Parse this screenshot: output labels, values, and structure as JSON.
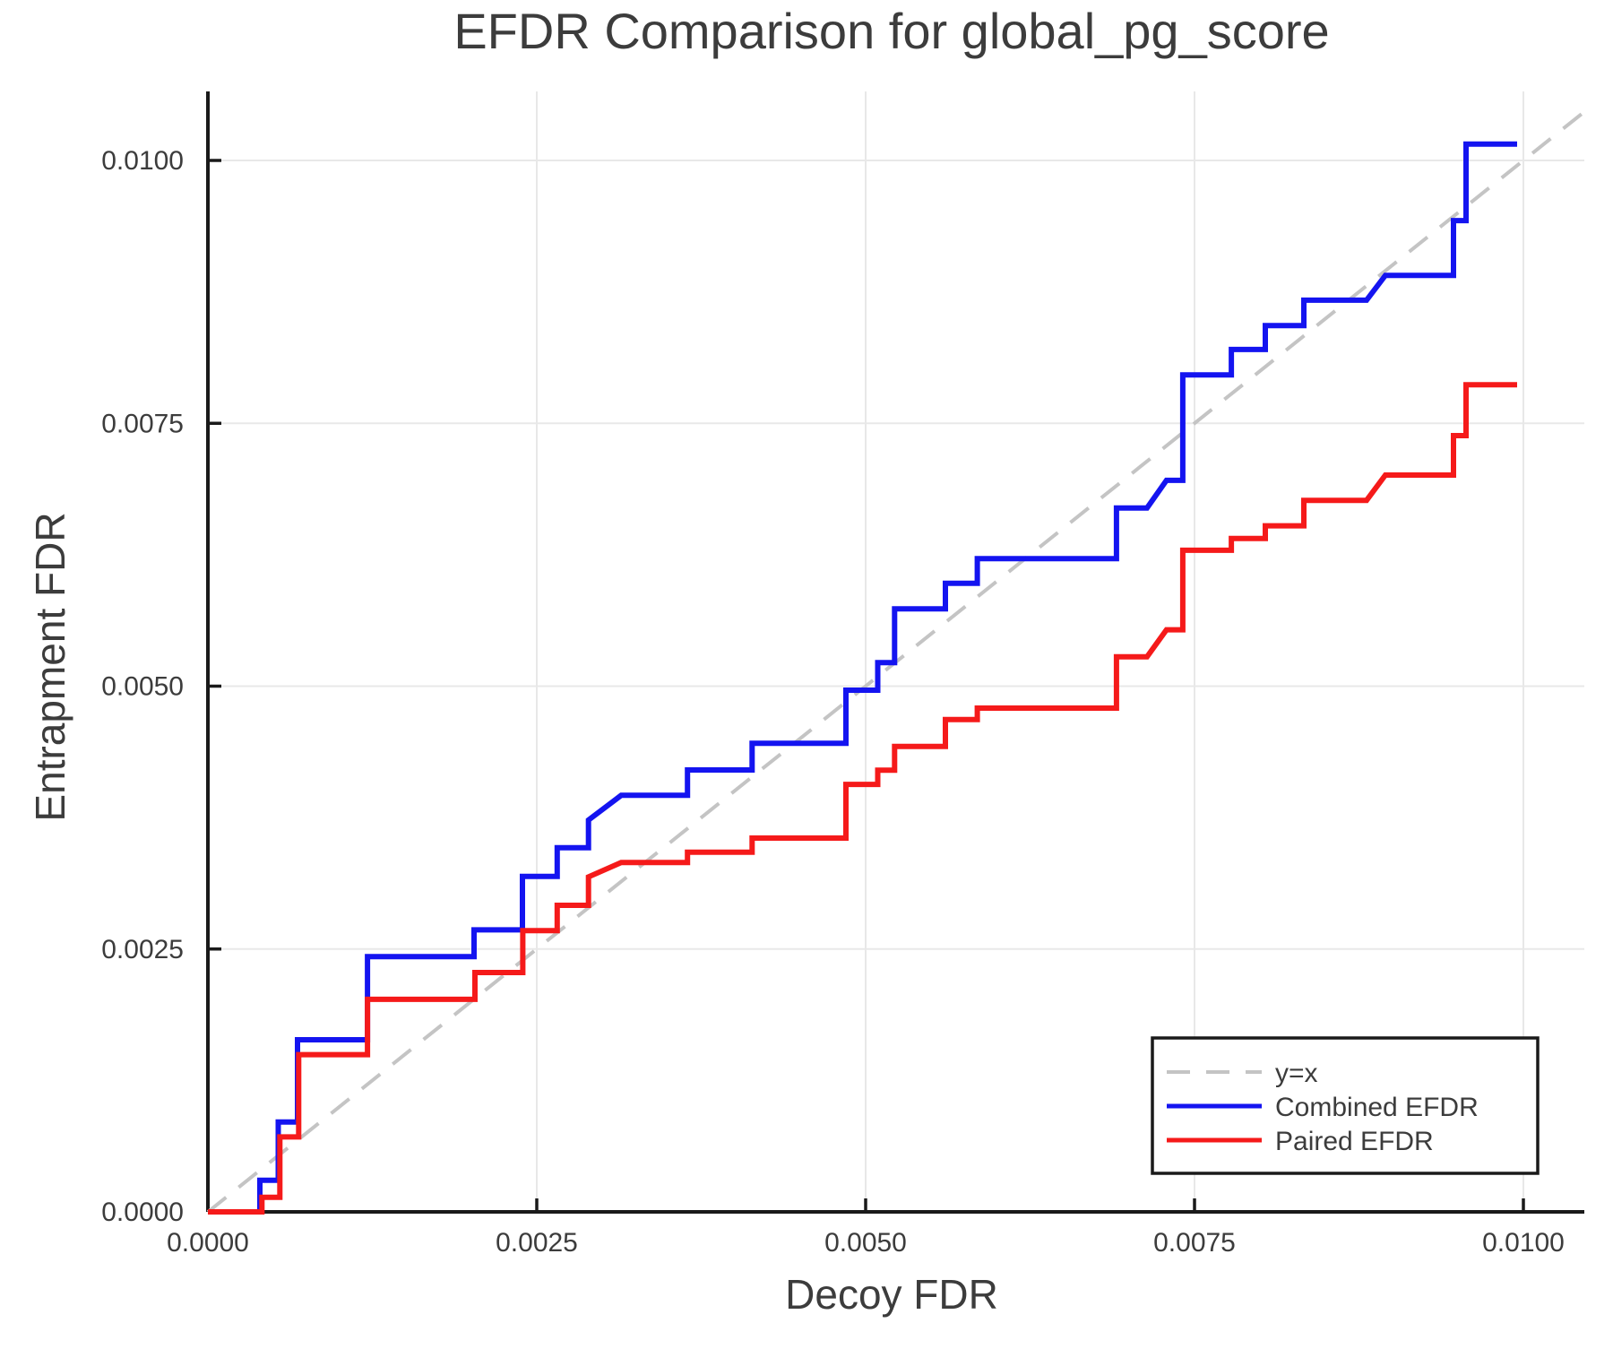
{
  "title": "EFDR Comparison for global_pg_score",
  "chart_data": {
    "type": "line",
    "title": "EFDR Comparison for global_pg_score",
    "xlabel": "Decoy FDR",
    "ylabel": "Entrapment FDR",
    "xlim": [
      0,
      0.010463
    ],
    "ylim": [
      0,
      0.010656
    ],
    "x_ticks": [
      0,
      0.0025,
      0.005,
      0.0075,
      0.01
    ],
    "x_tick_labels": [
      "0.0000",
      "0.0025",
      "0.0050",
      "0.0075",
      "0.0100"
    ],
    "y_ticks": [
      0,
      0.0025,
      0.005,
      0.0075,
      0.01
    ],
    "y_tick_labels": [
      "0.0000",
      "0.0025",
      "0.0050",
      "0.0075",
      "0.0100"
    ],
    "grid": true,
    "grid_color": "#E8E8E8",
    "spine_color": "#1a1a1a",
    "text_color": "#3C3C3C",
    "legend_position": "lower right",
    "series": [
      {
        "name": "y=x",
        "style": "dashed",
        "color": "#C4C4C4",
        "width": 4,
        "points": [
          [
            0,
            0
          ],
          [
            0.010463,
            0.010463
          ]
        ]
      },
      {
        "name": "Combined EFDR",
        "style": "solid",
        "color": "#1414F0",
        "width": 6,
        "points": [
          [
            0.0,
            0.0
          ],
          [
            0.000395,
            0.0
          ],
          [
            0.000395,
            0.000301
          ],
          [
            0.000535,
            0.000301
          ],
          [
            0.000535,
            0.000855
          ],
          [
            0.000681,
            0.000855
          ],
          [
            0.000681,
            0.001637
          ],
          [
            0.001213,
            0.001637
          ],
          [
            0.001213,
            0.002427
          ],
          [
            0.002023,
            0.002427
          ],
          [
            0.002023,
            0.002682
          ],
          [
            0.002391,
            0.002682
          ],
          [
            0.002391,
            0.00319
          ],
          [
            0.002655,
            0.00319
          ],
          [
            0.002655,
            0.003464
          ],
          [
            0.002893,
            0.003464
          ],
          [
            0.002893,
            0.003726
          ],
          [
            0.003142,
            0.003962
          ],
          [
            0.003646,
            0.003962
          ],
          [
            0.003646,
            0.004203
          ],
          [
            0.004137,
            0.004203
          ],
          [
            0.004137,
            0.004457
          ],
          [
            0.00485,
            0.004457
          ],
          [
            0.00485,
            0.004962
          ],
          [
            0.005092,
            0.004962
          ],
          [
            0.005092,
            0.005223
          ],
          [
            0.00522,
            0.005223
          ],
          [
            0.00522,
            0.005735
          ],
          [
            0.005606,
            0.005735
          ],
          [
            0.005606,
            0.005979
          ],
          [
            0.005849,
            0.005979
          ],
          [
            0.005849,
            0.006212
          ],
          [
            0.006907,
            0.006212
          ],
          [
            0.006907,
            0.006695
          ],
          [
            0.007139,
            0.006695
          ],
          [
            0.007287,
            0.006957
          ],
          [
            0.007411,
            0.006957
          ],
          [
            0.007411,
            0.00796
          ],
          [
            0.00778,
            0.00796
          ],
          [
            0.00778,
            0.008202
          ],
          [
            0.008038,
            0.008202
          ],
          [
            0.008038,
            0.008429
          ],
          [
            0.008331,
            0.008429
          ],
          [
            0.008331,
            0.008671
          ],
          [
            0.008808,
            0.008671
          ],
          [
            0.008951,
            0.008907
          ],
          [
            0.009469,
            0.008907
          ],
          [
            0.009469,
            0.009428
          ],
          [
            0.009564,
            0.009428
          ],
          [
            0.009564,
            0.010156
          ],
          [
            0.009952,
            0.010156
          ]
        ]
      },
      {
        "name": "Paired EFDR",
        "style": "solid",
        "color": "#F51A1A",
        "width": 6,
        "points": [
          [
            0.0,
            0.0
          ],
          [
            0.000411,
            0.0
          ],
          [
            0.000411,
            0.000139
          ],
          [
            0.000547,
            0.000139
          ],
          [
            0.000547,
            0.000713
          ],
          [
            0.00069,
            0.000713
          ],
          [
            0.00069,
            0.001495
          ],
          [
            0.001213,
            0.001495
          ],
          [
            0.001213,
            0.002021
          ],
          [
            0.00203,
            0.002021
          ],
          [
            0.00203,
            0.002276
          ],
          [
            0.002394,
            0.002276
          ],
          [
            0.002394,
            0.002674
          ],
          [
            0.002655,
            0.002674
          ],
          [
            0.002655,
            0.002916
          ],
          [
            0.002893,
            0.002916
          ],
          [
            0.002893,
            0.003186
          ],
          [
            0.003142,
            0.003322
          ],
          [
            0.003646,
            0.003322
          ],
          [
            0.003646,
            0.003421
          ],
          [
            0.004137,
            0.003421
          ],
          [
            0.004137,
            0.003555
          ],
          [
            0.00485,
            0.003555
          ],
          [
            0.00485,
            0.004066
          ],
          [
            0.005092,
            0.004066
          ],
          [
            0.005092,
            0.0042
          ],
          [
            0.00522,
            0.0042
          ],
          [
            0.00522,
            0.004427
          ],
          [
            0.005606,
            0.004427
          ],
          [
            0.005606,
            0.004683
          ],
          [
            0.005849,
            0.004683
          ],
          [
            0.005849,
            0.004791
          ],
          [
            0.006907,
            0.004791
          ],
          [
            0.006907,
            0.00528
          ],
          [
            0.007139,
            0.00528
          ],
          [
            0.007287,
            0.005536
          ],
          [
            0.007411,
            0.005536
          ],
          [
            0.007411,
            0.006292
          ],
          [
            0.00778,
            0.006292
          ],
          [
            0.00778,
            0.006405
          ],
          [
            0.008038,
            0.006405
          ],
          [
            0.008038,
            0.006525
          ],
          [
            0.008331,
            0.006525
          ],
          [
            0.008331,
            0.006767
          ],
          [
            0.008808,
            0.006767
          ],
          [
            0.008951,
            0.007008
          ],
          [
            0.009469,
            0.007008
          ],
          [
            0.009469,
            0.007383
          ],
          [
            0.009564,
            0.007383
          ],
          [
            0.009564,
            0.007866
          ],
          [
            0.009952,
            0.007866
          ]
        ]
      }
    ],
    "legend": {
      "entries": [
        "y=x",
        "Combined EFDR",
        "Paired EFDR"
      ]
    }
  }
}
